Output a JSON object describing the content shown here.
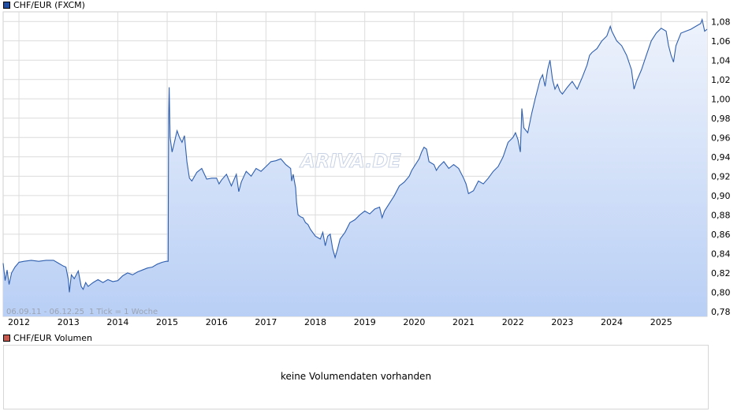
{
  "legend_main": {
    "label": "CHF/EUR (FXCM)",
    "color": "#1f4ea3"
  },
  "legend_volume": {
    "label": "CHF/EUR Volumen",
    "color": "#c8574d"
  },
  "watermark": "ARIVA.DE",
  "info": {
    "range": "06.09.11 - 06.12.25",
    "tick": "1 Tick = 1 Woche"
  },
  "volume_message": "keine Volumendaten vorhanden",
  "colors": {
    "line": "#2f5fae",
    "fill_top": "#eef3fc",
    "fill_bottom": "#b9cff5",
    "grid": "#dcdcdc"
  },
  "chart_data": {
    "type": "area",
    "title": "",
    "xlabel": "",
    "ylabel": "",
    "xlim": [
      2011.68,
      2025.93
    ],
    "ylim": [
      0.775,
      1.09
    ],
    "x_ticks": [
      {
        "x": 2012,
        "label": "2012"
      },
      {
        "x": 2013,
        "label": "2013"
      },
      {
        "x": 2014,
        "label": "2014"
      },
      {
        "x": 2015,
        "label": "2015"
      },
      {
        "x": 2016,
        "label": "2016"
      },
      {
        "x": 2017,
        "label": "2017"
      },
      {
        "x": 2018,
        "label": "2018"
      },
      {
        "x": 2019,
        "label": "2019"
      },
      {
        "x": 2020,
        "label": "2020"
      },
      {
        "x": 2021,
        "label": "2021"
      },
      {
        "x": 2022,
        "label": "2022"
      },
      {
        "x": 2023,
        "label": "2023"
      },
      {
        "x": 2024,
        "label": "2024"
      },
      {
        "x": 2025,
        "label": "2025"
      }
    ],
    "y_ticks": [
      {
        "y": 0.78,
        "label": "0,78"
      },
      {
        "y": 0.8,
        "label": "0,80"
      },
      {
        "y": 0.82,
        "label": "0,82"
      },
      {
        "y": 0.84,
        "label": "0,84"
      },
      {
        "y": 0.86,
        "label": "0,86"
      },
      {
        "y": 0.88,
        "label": "0,88"
      },
      {
        "y": 0.9,
        "label": "0,90"
      },
      {
        "y": 0.92,
        "label": "0,92"
      },
      {
        "y": 0.94,
        "label": "0,94"
      },
      {
        "y": 0.96,
        "label": "0,96"
      },
      {
        "y": 0.98,
        "label": "0,98"
      },
      {
        "y": 1.0,
        "label": "1,00"
      },
      {
        "y": 1.02,
        "label": "1,02"
      },
      {
        "y": 1.04,
        "label": "1,04"
      },
      {
        "y": 1.06,
        "label": "1,06"
      },
      {
        "y": 1.08,
        "label": "1,08"
      }
    ],
    "grid": true,
    "y_axis_side": "right",
    "series": [
      {
        "name": "CHF/EUR (FXCM)",
        "points": [
          [
            2011.68,
            0.83
          ],
          [
            2011.72,
            0.812
          ],
          [
            2011.76,
            0.823
          ],
          [
            2011.8,
            0.808
          ],
          [
            2011.85,
            0.82
          ],
          [
            2011.92,
            0.826
          ],
          [
            2012.0,
            0.831
          ],
          [
            2012.1,
            0.832
          ],
          [
            2012.25,
            0.833
          ],
          [
            2012.4,
            0.832
          ],
          [
            2012.55,
            0.833
          ],
          [
            2012.7,
            0.833
          ],
          [
            2012.8,
            0.83
          ],
          [
            2012.9,
            0.827
          ],
          [
            2012.95,
            0.826
          ],
          [
            2013.0,
            0.813
          ],
          [
            2013.02,
            0.8
          ],
          [
            2013.06,
            0.818
          ],
          [
            2013.12,
            0.814
          ],
          [
            2013.2,
            0.822
          ],
          [
            2013.26,
            0.806
          ],
          [
            2013.3,
            0.803
          ],
          [
            2013.35,
            0.81
          ],
          [
            2013.4,
            0.806
          ],
          [
            2013.5,
            0.81
          ],
          [
            2013.6,
            0.813
          ],
          [
            2013.7,
            0.81
          ],
          [
            2013.8,
            0.813
          ],
          [
            2013.9,
            0.811
          ],
          [
            2014.0,
            0.812
          ],
          [
            2014.1,
            0.817
          ],
          [
            2014.2,
            0.82
          ],
          [
            2014.3,
            0.818
          ],
          [
            2014.4,
            0.821
          ],
          [
            2014.5,
            0.823
          ],
          [
            2014.6,
            0.825
          ],
          [
            2014.7,
            0.826
          ],
          [
            2014.8,
            0.829
          ],
          [
            2014.9,
            0.831
          ],
          [
            2014.98,
            0.832
          ],
          [
            2015.02,
            0.832
          ],
          [
            2015.03,
            0.98
          ],
          [
            2015.04,
            1.012
          ],
          [
            2015.06,
            0.96
          ],
          [
            2015.1,
            0.945
          ],
          [
            2015.15,
            0.956
          ],
          [
            2015.2,
            0.967
          ],
          [
            2015.25,
            0.96
          ],
          [
            2015.3,
            0.955
          ],
          [
            2015.35,
            0.962
          ],
          [
            2015.4,
            0.935
          ],
          [
            2015.45,
            0.918
          ],
          [
            2015.5,
            0.915
          ],
          [
            2015.6,
            0.924
          ],
          [
            2015.7,
            0.928
          ],
          [
            2015.8,
            0.917
          ],
          [
            2015.9,
            0.918
          ],
          [
            2016.0,
            0.918
          ],
          [
            2016.05,
            0.912
          ],
          [
            2016.1,
            0.916
          ],
          [
            2016.2,
            0.922
          ],
          [
            2016.3,
            0.91
          ],
          [
            2016.4,
            0.922
          ],
          [
            2016.45,
            0.904
          ],
          [
            2016.5,
            0.914
          ],
          [
            2016.6,
            0.925
          ],
          [
            2016.7,
            0.92
          ],
          [
            2016.8,
            0.928
          ],
          [
            2016.9,
            0.925
          ],
          [
            2017.0,
            0.93
          ],
          [
            2017.1,
            0.935
          ],
          [
            2017.2,
            0.936
          ],
          [
            2017.3,
            0.938
          ],
          [
            2017.4,
            0.932
          ],
          [
            2017.5,
            0.928
          ],
          [
            2017.52,
            0.915
          ],
          [
            2017.55,
            0.922
          ],
          [
            2017.6,
            0.908
          ],
          [
            2017.62,
            0.893
          ],
          [
            2017.65,
            0.88
          ],
          [
            2017.7,
            0.878
          ],
          [
            2017.75,
            0.877
          ],
          [
            2017.8,
            0.872
          ],
          [
            2017.85,
            0.87
          ],
          [
            2017.9,
            0.865
          ],
          [
            2018.0,
            0.858
          ],
          [
            2018.1,
            0.855
          ],
          [
            2018.15,
            0.862
          ],
          [
            2018.2,
            0.848
          ],
          [
            2018.25,
            0.858
          ],
          [
            2018.3,
            0.86
          ],
          [
            2018.35,
            0.845
          ],
          [
            2018.4,
            0.836
          ],
          [
            2018.45,
            0.845
          ],
          [
            2018.5,
            0.855
          ],
          [
            2018.6,
            0.862
          ],
          [
            2018.7,
            0.872
          ],
          [
            2018.8,
            0.875
          ],
          [
            2018.9,
            0.88
          ],
          [
            2019.0,
            0.884
          ],
          [
            2019.1,
            0.881
          ],
          [
            2019.2,
            0.886
          ],
          [
            2019.3,
            0.888
          ],
          [
            2019.35,
            0.877
          ],
          [
            2019.4,
            0.884
          ],
          [
            2019.5,
            0.892
          ],
          [
            2019.6,
            0.9
          ],
          [
            2019.7,
            0.91
          ],
          [
            2019.8,
            0.914
          ],
          [
            2019.9,
            0.92
          ],
          [
            2019.95,
            0.926
          ],
          [
            2020.0,
            0.93
          ],
          [
            2020.1,
            0.938
          ],
          [
            2020.15,
            0.945
          ],
          [
            2020.2,
            0.95
          ],
          [
            2020.25,
            0.948
          ],
          [
            2020.3,
            0.935
          ],
          [
            2020.4,
            0.932
          ],
          [
            2020.45,
            0.926
          ],
          [
            2020.5,
            0.93
          ],
          [
            2020.6,
            0.935
          ],
          [
            2020.7,
            0.928
          ],
          [
            2020.8,
            0.932
          ],
          [
            2020.9,
            0.928
          ],
          [
            2021.0,
            0.918
          ],
          [
            2021.05,
            0.912
          ],
          [
            2021.1,
            0.902
          ],
          [
            2021.2,
            0.905
          ],
          [
            2021.3,
            0.915
          ],
          [
            2021.4,
            0.912
          ],
          [
            2021.5,
            0.918
          ],
          [
            2021.6,
            0.925
          ],
          [
            2021.7,
            0.93
          ],
          [
            2021.8,
            0.94
          ],
          [
            2021.9,
            0.955
          ],
          [
            2022.0,
            0.96
          ],
          [
            2022.05,
            0.965
          ],
          [
            2022.1,
            0.958
          ],
          [
            2022.15,
            0.945
          ],
          [
            2022.18,
            0.99
          ],
          [
            2022.22,
            0.97
          ],
          [
            2022.3,
            0.965
          ],
          [
            2022.38,
            0.985
          ],
          [
            2022.45,
            1.0
          ],
          [
            2022.55,
            1.02
          ],
          [
            2022.6,
            1.025
          ],
          [
            2022.65,
            1.013
          ],
          [
            2022.7,
            1.03
          ],
          [
            2022.75,
            1.04
          ],
          [
            2022.8,
            1.02
          ],
          [
            2022.85,
            1.01
          ],
          [
            2022.9,
            1.015
          ],
          [
            2022.95,
            1.008
          ],
          [
            2023.0,
            1.005
          ],
          [
            2023.1,
            1.012
          ],
          [
            2023.2,
            1.018
          ],
          [
            2023.3,
            1.01
          ],
          [
            2023.4,
            1.022
          ],
          [
            2023.5,
            1.035
          ],
          [
            2023.55,
            1.045
          ],
          [
            2023.6,
            1.048
          ],
          [
            2023.7,
            1.052
          ],
          [
            2023.8,
            1.06
          ],
          [
            2023.9,
            1.065
          ],
          [
            2023.97,
            1.075
          ],
          [
            2024.0,
            1.07
          ],
          [
            2024.1,
            1.06
          ],
          [
            2024.2,
            1.055
          ],
          [
            2024.3,
            1.045
          ],
          [
            2024.4,
            1.03
          ],
          [
            2024.45,
            1.01
          ],
          [
            2024.5,
            1.018
          ],
          [
            2024.6,
            1.03
          ],
          [
            2024.7,
            1.045
          ],
          [
            2024.8,
            1.06
          ],
          [
            2024.9,
            1.068
          ],
          [
            2025.0,
            1.073
          ],
          [
            2025.1,
            1.07
          ],
          [
            2025.15,
            1.055
          ],
          [
            2025.2,
            1.045
          ],
          [
            2025.25,
            1.038
          ],
          [
            2025.3,
            1.055
          ],
          [
            2025.4,
            1.068
          ],
          [
            2025.5,
            1.07
          ],
          [
            2025.6,
            1.072
          ],
          [
            2025.7,
            1.075
          ],
          [
            2025.8,
            1.078
          ],
          [
            2025.83,
            1.082
          ],
          [
            2025.88,
            1.07
          ],
          [
            2025.93,
            1.072
          ]
        ]
      }
    ]
  }
}
